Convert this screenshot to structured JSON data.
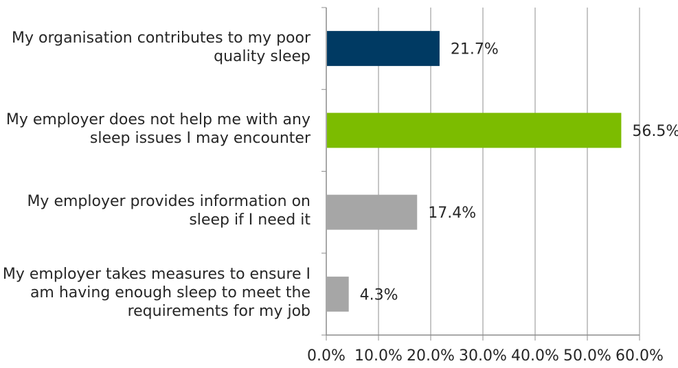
{
  "chart_data": {
    "type": "bar",
    "orientation": "horizontal",
    "categories": [
      [
        "My organisation contributes to my poor",
        "quality sleep"
      ],
      [
        "My employer does not help me with any",
        "sleep issues I may encounter"
      ],
      [
        "My employer provides information on",
        "sleep if I need it"
      ],
      [
        "My employer takes measures to ensure I",
        "am having enough sleep to meet the",
        "requirements for my job"
      ]
    ],
    "values": [
      21.7,
      56.5,
      17.4,
      4.3
    ],
    "value_labels": [
      "21.7%",
      "56.5%",
      "17.4%",
      "4.3%"
    ],
    "bar_colors": [
      "#003a63",
      "#7cbc00",
      "#a6a6a6",
      "#a6a6a6"
    ],
    "xlim": [
      0,
      60
    ],
    "xticks": [
      0,
      10,
      20,
      30,
      40,
      50,
      60
    ],
    "xtick_labels": [
      "0.0%",
      "10.0%",
      "20.0%",
      "30.0%",
      "40.0%",
      "50.0%",
      "60.0%"
    ],
    "grid": "vertical",
    "legend": "none",
    "title": "",
    "xlabel": "",
    "ylabel": "",
    "gridline_color": "#8c8c8c",
    "text_color": "#262626"
  }
}
